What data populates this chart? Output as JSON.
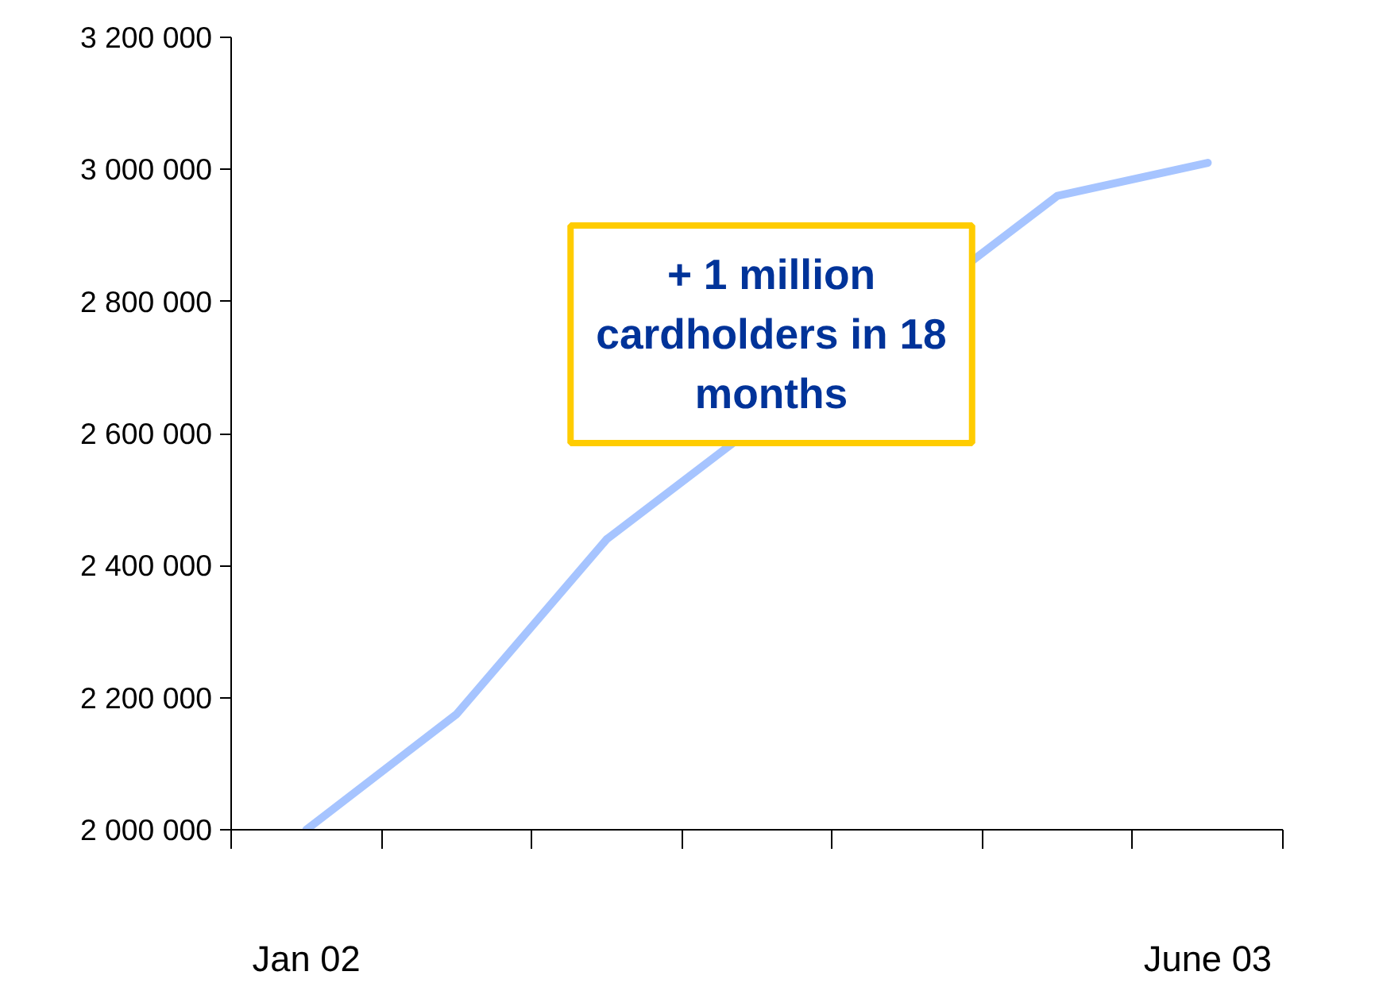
{
  "chart_data": {
    "type": "line",
    "categories": [
      "Jan 02",
      null,
      null,
      null,
      null,
      null,
      "June 03"
    ],
    "series": [
      {
        "color": "#a6c4ff",
        "values": [
          2000000,
          2175000,
          2440000,
          null,
          null,
          2960000,
          3010000
        ]
      }
    ],
    "ylim": [
      2000000,
      3200000
    ],
    "yticks": [
      {
        "value": 2000000,
        "label": "2 000 000"
      },
      {
        "value": 2200000,
        "label": "2 200 000"
      },
      {
        "value": 2400000,
        "label": "2 400 000"
      },
      {
        "value": 2600000,
        "label": "2 600 000"
      },
      {
        "value": 2800000,
        "label": "2 800 000"
      },
      {
        "value": 3000000,
        "label": "3 000 000"
      },
      {
        "value": 3200000,
        "label": "3 200 000"
      }
    ],
    "annotations": [
      "+ 1 million cardholders in 18 months"
    ],
    "grid": false,
    "marker": "none",
    "line_style": "solid"
  }
}
